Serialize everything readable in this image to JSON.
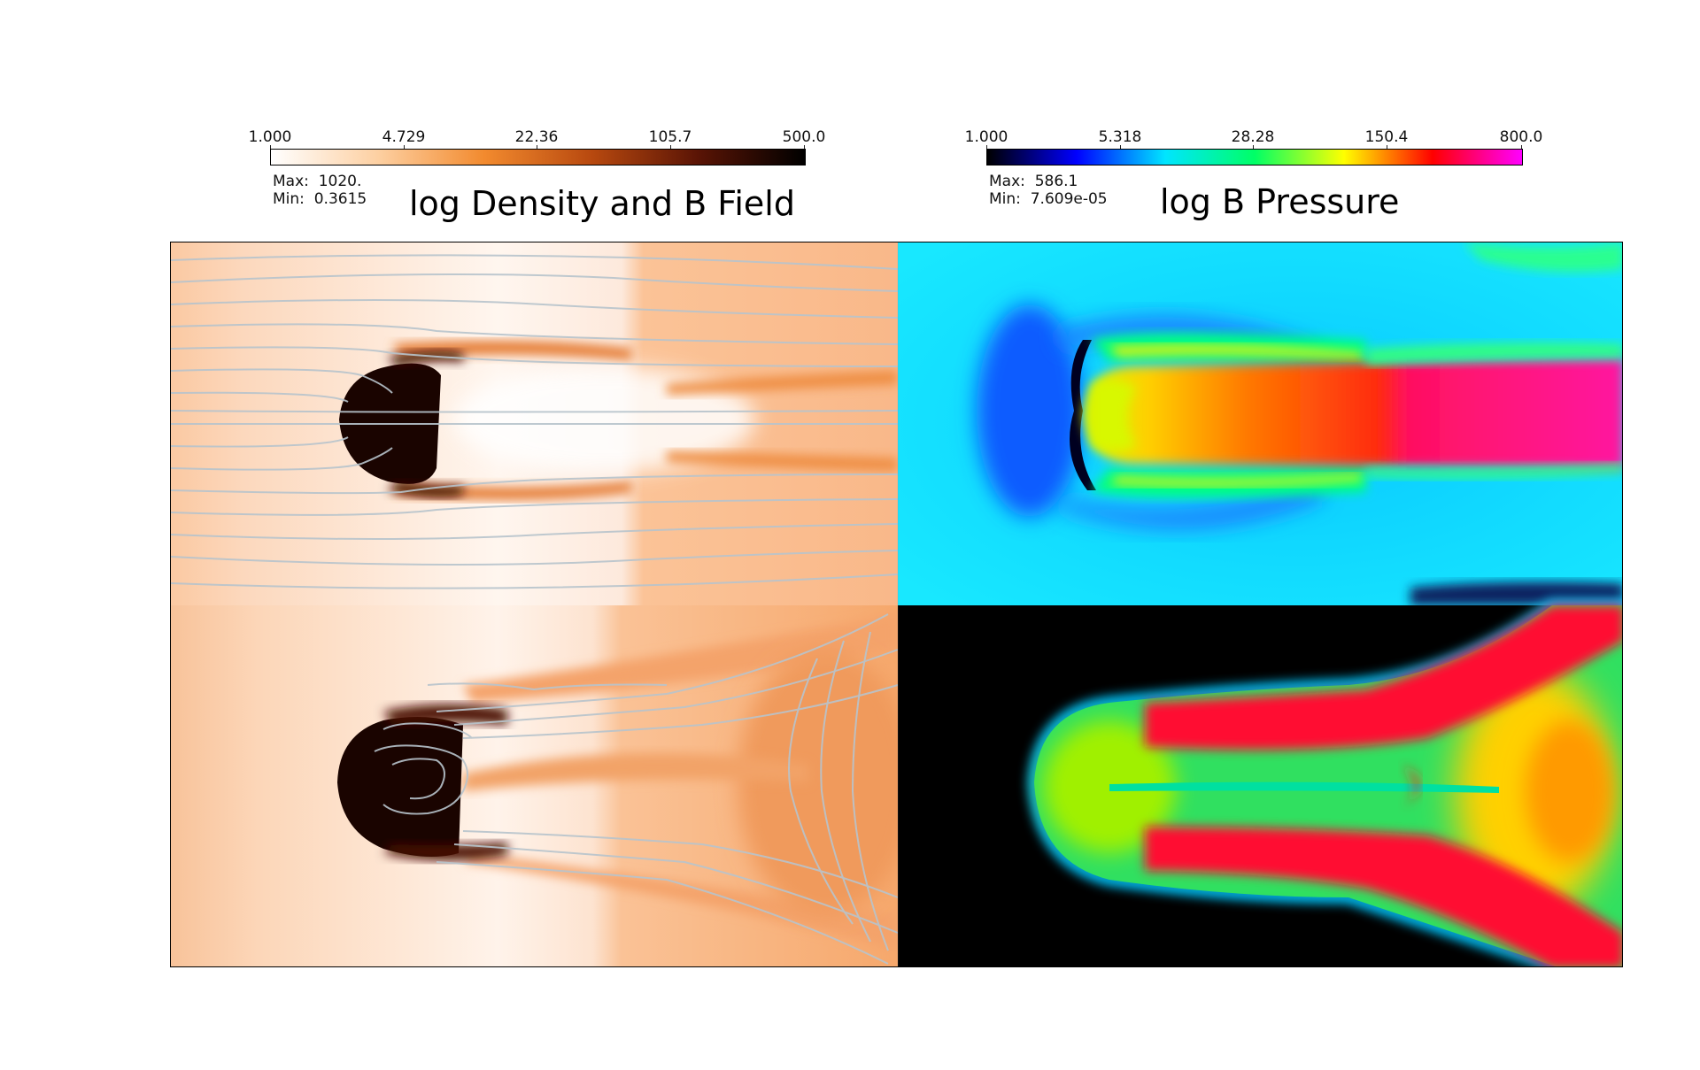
{
  "chart_data": [
    {
      "type": "heatmap",
      "title": "log Density and B Field",
      "colorbar": {
        "tick_labels": [
          "1.000",
          "4.729",
          "22.36",
          "105.7",
          "500.0"
        ],
        "range": [
          1.0,
          500.0
        ],
        "scale": "log",
        "colors": [
          "#ffffff",
          "#fdd0a2",
          "#f28a2e",
          "#b8490f",
          "#5a1405",
          "#000000"
        ]
      },
      "stats": {
        "max_label": "Max:",
        "max": "1020.",
        "min_label": "Min:",
        "min": "0.3615"
      },
      "panels": [
        "upper density slice",
        "lower density slice"
      ],
      "overlay": "magnetic field lines (light grey)"
    },
    {
      "type": "heatmap",
      "title": "log B Pressure",
      "colorbar": {
        "tick_labels": [
          "1.000",
          "5.318",
          "28.28",
          "150.4",
          "800.0"
        ],
        "range": [
          1.0,
          800.0
        ],
        "scale": "log",
        "colors": [
          "#000000",
          "#0000ff",
          "#00e5ff",
          "#00ff66",
          "#ffff00",
          "#ff0000",
          "#ff00ff"
        ]
      },
      "stats": {
        "max_label": "Max:",
        "max": "586.1",
        "min_label": "Min:",
        "min": "7.609e-05"
      },
      "panels": [
        "upper B pressure slice",
        "lower B pressure slice"
      ]
    }
  ]
}
